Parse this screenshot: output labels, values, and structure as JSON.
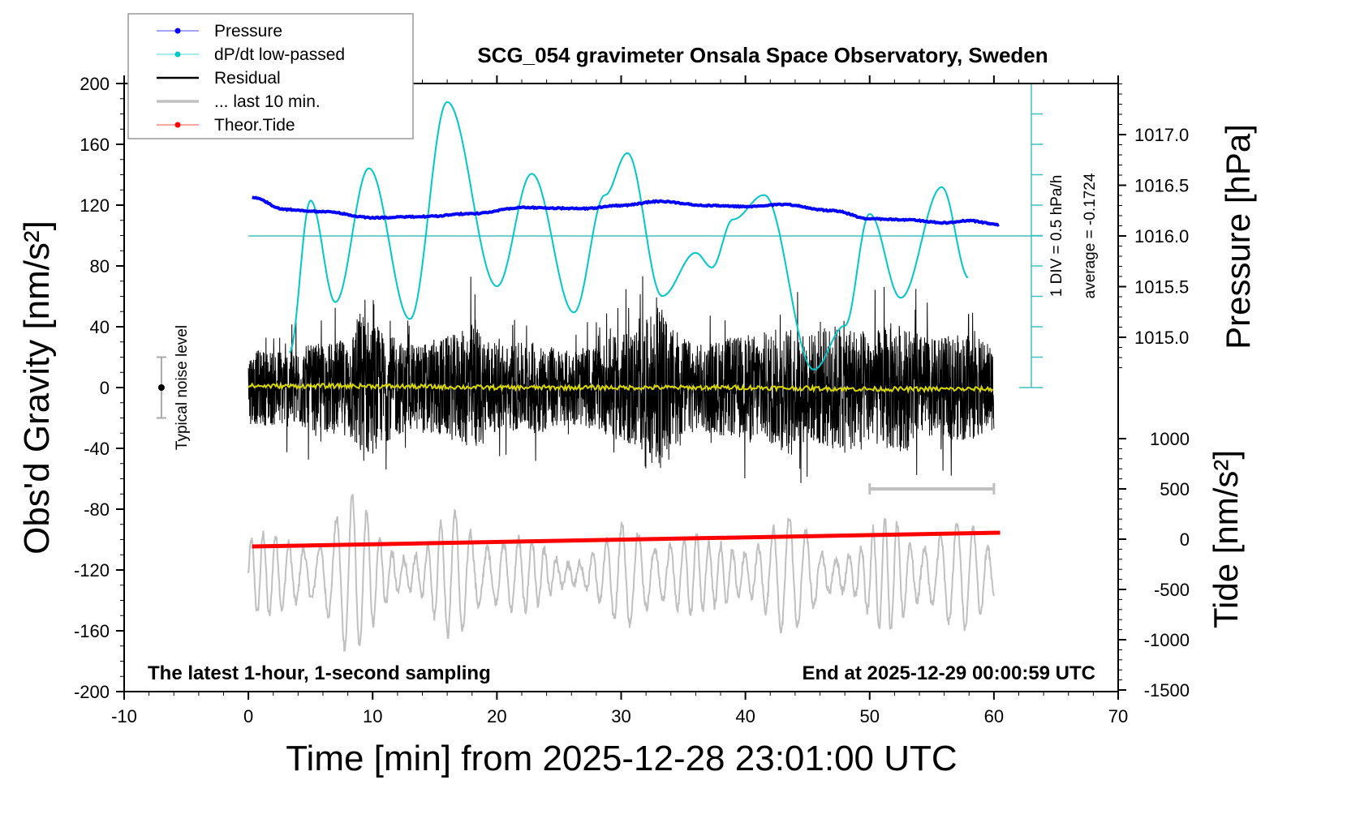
{
  "chart_data": {
    "type": "line",
    "title": "SCG_054 gravimeter Onsala Space Observatory, Sweden",
    "xlabel": "Time [min] from 2025-12-28 23:01:00 UTC",
    "ylabel": "Obs'd Gravity [nm/s²]",
    "ylabel_right_top": "Pressure [hPa]",
    "ylabel_right_bottom": "Tide [nm/s²]",
    "xlim": [
      -10,
      70
    ],
    "ylim": [
      -200,
      200
    ],
    "pressure_lim": [
      1014.5,
      1017.5
    ],
    "tide_lim": [
      -1500,
      1000
    ],
    "x_ticks": [
      -10,
      0,
      10,
      20,
      30,
      40,
      50,
      60,
      70
    ],
    "y_ticks": [
      200,
      160,
      120,
      80,
      40,
      0,
      -40,
      -80,
      -120,
      -160,
      -200
    ],
    "pressure_ticks": [
      "1017.0",
      "1016.5",
      "1016.0",
      "1015.5",
      "1015.0"
    ],
    "tide_ticks": [
      1000,
      500,
      0,
      -500,
      -1000,
      -1500
    ],
    "annotations": {
      "bottom_left": "The latest 1-hour, 1-second sampling",
      "bottom_right": "End at 2025-12-29 00:00:59 UTC",
      "div_label": "1 DIV = 0.5 hPa/h",
      "average_label": "average = -0.1724",
      "noise_label": "Typical noise level"
    },
    "legend": {
      "position": "top-left",
      "entries": [
        {
          "label": "Pressure",
          "color": "#0000ff",
          "marker": true
        },
        {
          "label": "dP/dt low-passed",
          "color": "#00c8c8",
          "marker": true
        },
        {
          "label": "Residual",
          "color": "#000000",
          "marker": false
        },
        {
          "label": "... last 10 min.",
          "color": "#c0c0c0",
          "marker": false
        },
        {
          "label": "Theor.Tide",
          "color": "#ff0000",
          "marker": true
        }
      ]
    },
    "dpdt_average": -0.1724,
    "dpdt_div": 0.5,
    "noise_level": {
      "x": -7,
      "range": [
        -20,
        20
      ]
    },
    "series": [
      {
        "name": "Pressure",
        "unit": "hPa",
        "color": "#0000ff",
        "x": [
          0.3,
          3,
          6,
          10,
          14,
          18,
          22,
          27,
          30,
          33,
          37,
          40,
          43,
          47,
          50,
          53,
          56,
          58,
          60.5
        ],
        "y": [
          1016.38,
          1016.26,
          1016.24,
          1016.18,
          1016.19,
          1016.22,
          1016.28,
          1016.27,
          1016.3,
          1016.34,
          1016.3,
          1016.29,
          1016.31,
          1016.25,
          1016.17,
          1016.16,
          1016.13,
          1016.15,
          1016.11
        ]
      },
      {
        "name": "dP/dt low-passed",
        "unit": "hPa/h",
        "color": "#00c8c8",
        "x": [
          3.3,
          5,
          7,
          9.7,
          13,
          16,
          20,
          22.8,
          26.2,
          28.7,
          30.5,
          33.3,
          36,
          37.3,
          39,
          41.5,
          45.5,
          48,
          50,
          52.5,
          55.8,
          58
        ],
        "y": [
          -2.09,
          0.41,
          -1.26,
          0.94,
          -1.54,
          2.03,
          -1.0,
          0.85,
          -1.43,
          0.5,
          1.19,
          -1.16,
          -0.45,
          -0.69,
          0.1,
          0.5,
          -2.37,
          -1.65,
          0.19,
          -1.19,
          0.63,
          -0.87
        ]
      },
      {
        "name": "Residual",
        "unit": "nm/s²",
        "color": "#000000",
        "envelope_minutes": [
          0,
          5,
          8,
          9,
          10,
          11,
          13,
          15,
          17,
          18,
          20,
          23,
          26,
          28,
          30,
          32,
          33,
          34,
          36,
          38,
          41,
          43,
          45,
          48,
          50,
          52,
          55,
          58,
          60
        ],
        "envelope_amplitude": [
          30,
          35,
          40,
          65,
          55,
          45,
          35,
          40,
          45,
          55,
          35,
          38,
          30,
          35,
          45,
          55,
          70,
          50,
          35,
          40,
          45,
          50,
          45,
          55,
          45,
          55,
          40,
          45,
          35
        ]
      },
      {
        "name": "... last 10 min.",
        "unit": "nm/s²",
        "color": "#c0c0c0",
        "center": -123,
        "envelope_minutes": [
          0,
          3,
          6,
          8,
          11,
          14,
          17,
          19,
          22,
          25,
          28,
          31,
          34,
          37,
          40,
          43,
          46,
          49,
          52,
          55,
          58,
          60
        ],
        "envelope_amplitude": [
          30,
          25,
          45,
          55,
          35,
          20,
          50,
          45,
          25,
          15,
          20,
          40,
          40,
          20,
          35,
          40,
          30,
          20,
          45,
          40,
          35,
          25
        ]
      },
      {
        "name": "Residual smoothed",
        "unit": "nm/s²",
        "color": "#d8d800",
        "x": [
          0,
          10,
          20,
          30,
          40,
          50,
          60
        ],
        "y": [
          1,
          1,
          0,
          0,
          0,
          -1,
          -1
        ]
      },
      {
        "name": "Theor.Tide",
        "unit": "nm/s²",
        "color": "#ff0000",
        "x": [
          0.3,
          60.5
        ],
        "y": [
          -73,
          65
        ]
      }
    ]
  }
}
